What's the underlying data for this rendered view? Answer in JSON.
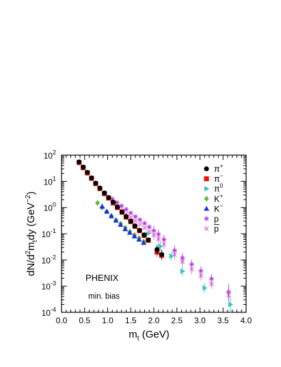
{
  "chart_data": {
    "type": "scatter",
    "title": "",
    "xlabel": {
      "base": "m",
      "sub": "t",
      "rest": " (GeV)"
    },
    "ylabel": {
      "p1": "dN/d",
      "sup1": "2",
      "p2": "m",
      "sub": "t",
      "p3": "dy (GeV",
      "sup2": "−2",
      "p4": ")"
    },
    "xlim": [
      0.0,
      4.0
    ],
    "ylim": [
      0.0001,
      100
    ],
    "yscale": "log",
    "grid": false,
    "legend_position": "right",
    "x_ticks": [
      {
        "value": 0.0,
        "label": "0.0"
      },
      {
        "value": 0.5,
        "label": "0.5"
      },
      {
        "value": 1.0,
        "label": "1.0"
      },
      {
        "value": 1.5,
        "label": "1.5"
      },
      {
        "value": 2.0,
        "label": "2.0"
      },
      {
        "value": 2.5,
        "label": "2.5"
      },
      {
        "value": 3.0,
        "label": "3.0"
      },
      {
        "value": 3.5,
        "label": "3.5"
      },
      {
        "value": 4.0,
        "label": "4.0"
      }
    ],
    "y_ticks": [
      {
        "value": 100,
        "base": "10",
        "exp": "2"
      },
      {
        "value": 10,
        "base": "10",
        "exp": "1"
      },
      {
        "value": 1,
        "base": "10",
        "exp": "0"
      },
      {
        "value": 0.1,
        "base": "10",
        "exp": "-1"
      },
      {
        "value": 0.01,
        "base": "10",
        "exp": "-2"
      },
      {
        "value": 0.001,
        "base": "10",
        "exp": "-3"
      },
      {
        "value": 0.0001,
        "base": "10",
        "exp": "-4"
      }
    ],
    "annotations": [
      "PHENIX",
      "min. bias"
    ],
    "series": [
      {
        "name": "π",
        "sup": "+",
        "marker": "circle",
        "color": "#000000",
        "points": [
          [
            0.38,
            55
          ],
          [
            0.47,
            35
          ],
          [
            0.56,
            22
          ],
          [
            0.65,
            13.5
          ],
          [
            0.74,
            8.5
          ],
          [
            0.83,
            5.5
          ],
          [
            0.93,
            3.6
          ],
          [
            1.02,
            2.4
          ],
          [
            1.12,
            1.6
          ],
          [
            1.21,
            1.05
          ],
          [
            1.31,
            0.68
          ],
          [
            1.4,
            0.45
          ],
          [
            1.5,
            0.3
          ],
          [
            1.59,
            0.2
          ],
          [
            1.69,
            0.135
          ],
          [
            1.79,
            0.09
          ],
          [
            1.88,
            0.058
          ],
          [
            2.07,
            0.025
          ],
          [
            2.17,
            0.016
          ]
        ]
      },
      {
        "name": "π",
        "sup": "−",
        "marker": "square",
        "color": "#e8150c",
        "points": [
          [
            0.38,
            52
          ],
          [
            0.47,
            33
          ],
          [
            0.56,
            21
          ],
          [
            0.65,
            13
          ],
          [
            0.74,
            8.2
          ],
          [
            0.83,
            5.3
          ],
          [
            0.93,
            3.4
          ],
          [
            1.02,
            2.3
          ],
          [
            1.12,
            1.5
          ],
          [
            1.21,
            1.0
          ],
          [
            1.31,
            0.66
          ],
          [
            1.4,
            0.43
          ],
          [
            1.5,
            0.29
          ],
          [
            1.59,
            0.19
          ],
          [
            1.69,
            0.13
          ],
          [
            1.79,
            0.086
          ],
          [
            1.88,
            0.056
          ],
          [
            2.07,
            0.02
          ],
          [
            2.17,
            0.015
          ]
        ]
      },
      {
        "name": "π",
        "sup": "0",
        "marker": "triangle-right",
        "color": "#34c4c4",
        "points": [
          [
            1.87,
            0.1
          ],
          [
            2.14,
            0.033
          ],
          [
            2.38,
            0.014
          ],
          [
            2.62,
            0.0037
          ],
          [
            3.1,
            0.00085
          ],
          [
            3.66,
            0.0002
          ]
        ]
      },
      {
        "name": "K",
        "sup": "+",
        "marker": "diamond",
        "color": "#5fbf2e",
        "points": [
          [
            0.78,
            1.5
          ],
          [
            0.88,
            1.0
          ],
          [
            0.98,
            0.7
          ],
          [
            1.08,
            0.48
          ],
          [
            1.18,
            0.33
          ],
          [
            1.28,
            0.24
          ],
          [
            1.38,
            0.17
          ],
          [
            1.48,
            0.12
          ],
          [
            1.58,
            0.09
          ],
          [
            1.68,
            0.068
          ],
          [
            1.78,
            0.05
          ]
        ]
      },
      {
        "name": "K",
        "sup": "−",
        "marker": "triangle-up",
        "color": "#1a2ee6",
        "points": [
          [
            0.88,
            1.1
          ],
          [
            0.98,
            0.7
          ],
          [
            1.08,
            0.47
          ],
          [
            1.18,
            0.32
          ],
          [
            1.28,
            0.22
          ],
          [
            1.38,
            0.15
          ],
          [
            1.48,
            0.11
          ],
          [
            1.58,
            0.08
          ],
          [
            1.68,
            0.06
          ],
          [
            1.78,
            0.045
          ]
        ]
      },
      {
        "name": "p",
        "sup": "",
        "marker": "asterisk",
        "color": "#b43cdc",
        "points": [
          [
            1.1,
            2.1
          ],
          [
            1.2,
            1.55
          ],
          [
            1.3,
            1.15
          ],
          [
            1.4,
            0.85
          ],
          [
            1.5,
            0.62
          ],
          [
            1.6,
            0.45
          ],
          [
            1.7,
            0.34
          ],
          [
            1.8,
            0.25
          ],
          [
            1.9,
            0.18
          ],
          [
            2.0,
            0.13
          ],
          [
            2.1,
            0.095
          ],
          [
            2.22,
            0.06
          ],
          [
            2.45,
            0.023
          ],
          [
            2.62,
            0.012
          ],
          [
            2.82,
            0.0068
          ],
          [
            3.02,
            0.0038
          ],
          [
            3.25,
            0.0019
          ],
          [
            3.62,
            0.0006
          ]
        ]
      },
      {
        "name": "p",
        "sup": "",
        "overline": true,
        "marker": "cross",
        "color": "#e060d0",
        "points": [
          [
            1.1,
            1.4
          ],
          [
            1.2,
            1.05
          ],
          [
            1.3,
            0.78
          ],
          [
            1.4,
            0.57
          ],
          [
            1.5,
            0.42
          ],
          [
            1.6,
            0.31
          ],
          [
            1.7,
            0.23
          ],
          [
            1.8,
            0.17
          ],
          [
            1.9,
            0.12
          ],
          [
            2.0,
            0.088
          ],
          [
            2.1,
            0.063
          ],
          [
            2.22,
            0.04
          ],
          [
            2.45,
            0.016
          ],
          [
            2.62,
            0.0085
          ],
          [
            2.82,
            0.0044
          ],
          [
            3.02,
            0.0025
          ],
          [
            3.25,
            0.0012
          ],
          [
            3.62,
            0.00045
          ]
        ]
      }
    ]
  }
}
